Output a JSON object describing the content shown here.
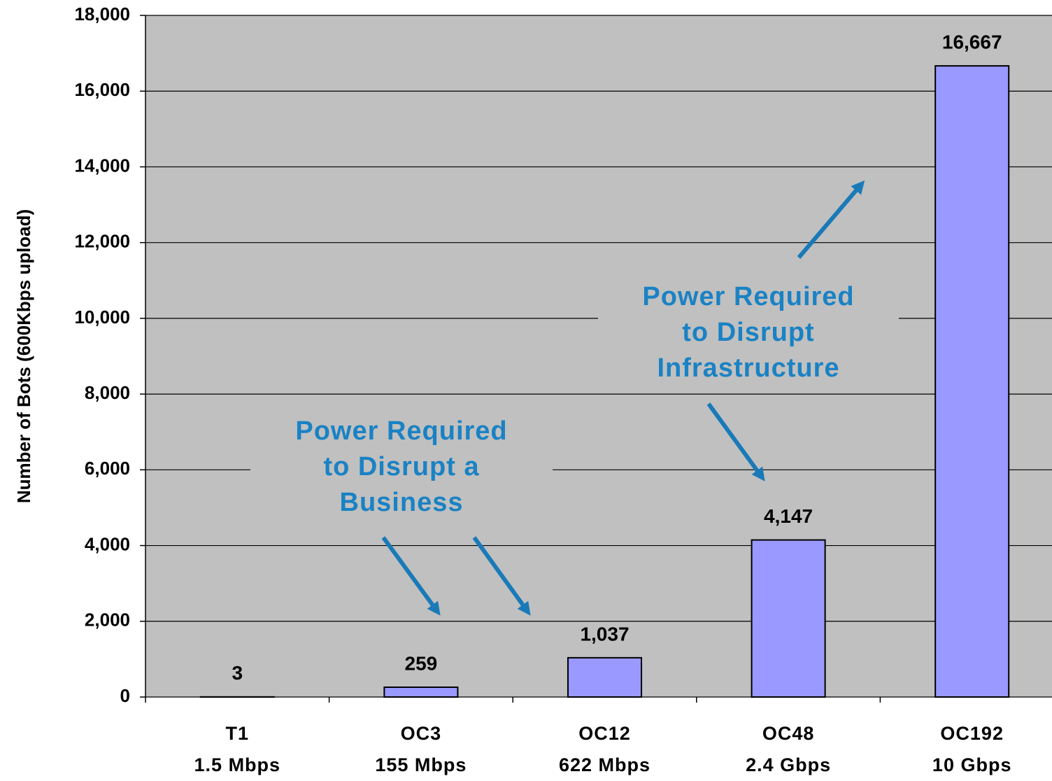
{
  "chart_data": {
    "type": "bar",
    "y_label": "Number of Bots (600Kbps upload)",
    "categories": [
      [
        "T1",
        "1.5 Mbps"
      ],
      [
        "OC3",
        "155 Mbps"
      ],
      [
        "OC12",
        "622 Mbps"
      ],
      [
        "OC48",
        "2.4 Gbps"
      ],
      [
        "OC192",
        "10 Gbps"
      ]
    ],
    "values": [
      3,
      259,
      1037,
      4147,
      16667
    ],
    "value_labels": [
      "3",
      "259",
      "1,037",
      "4,147",
      "16,667"
    ],
    "color": "#9999ff",
    "ylim": [
      0,
      18000
    ],
    "yticks": [
      0,
      {
        "value": 2000,
        "label": "2,000"
      },
      {
        "value": 4000,
        "label": "4,000"
      },
      {
        "value": 6000,
        "label": "6,000"
      },
      {
        "value": 8000,
        "label": "8,000"
      },
      {
        "value": 10000,
        "label": "10,000"
      },
      {
        "value": 12000,
        "label": "12,000"
      },
      {
        "value": 14000,
        "label": "14,000"
      },
      {
        "value": 16000,
        "label": "16,000"
      },
      {
        "value": 18000,
        "label": "18,000"
      }
    ],
    "grid": true,
    "annotations": [
      [
        "Power Required",
        "to Disrupt a",
        "Business"
      ],
      [
        "Power Required",
        "to Disrupt",
        "Infrastructure"
      ]
    ]
  }
}
